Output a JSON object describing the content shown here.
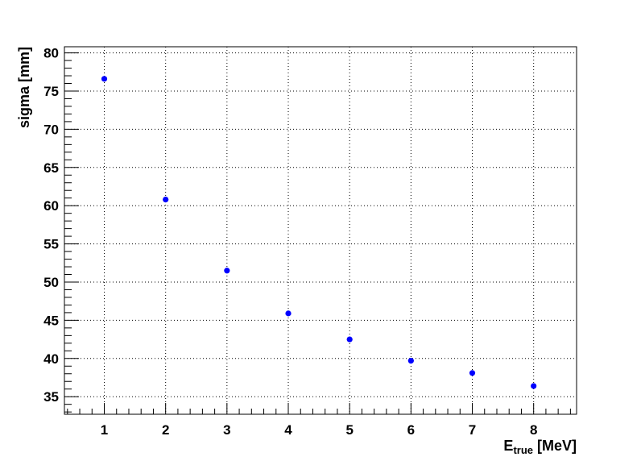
{
  "chart_data": {
    "type": "scatter",
    "title": "",
    "xlabel": {
      "main": "E",
      "subscript": "true",
      "unit": " [MeV]"
    },
    "ylabel": "sigma [mm]",
    "xlim": [
      0.35,
      8.7
    ],
    "ylim": [
      32.7,
      80.8
    ],
    "x_ticks": [
      "1",
      "2",
      "3",
      "4",
      "5",
      "6",
      "7",
      "8"
    ],
    "y_ticks": [
      "35",
      "40",
      "45",
      "50",
      "55",
      "60",
      "65",
      "70",
      "75",
      "80"
    ],
    "grid": true,
    "marker_color": "#0000ff",
    "series": [
      {
        "x": [
          1,
          2,
          3,
          4,
          5,
          6,
          7,
          8
        ],
        "y": [
          76.6,
          60.8,
          51.5,
          45.9,
          42.5,
          39.7,
          38.1,
          36.4
        ]
      }
    ]
  }
}
